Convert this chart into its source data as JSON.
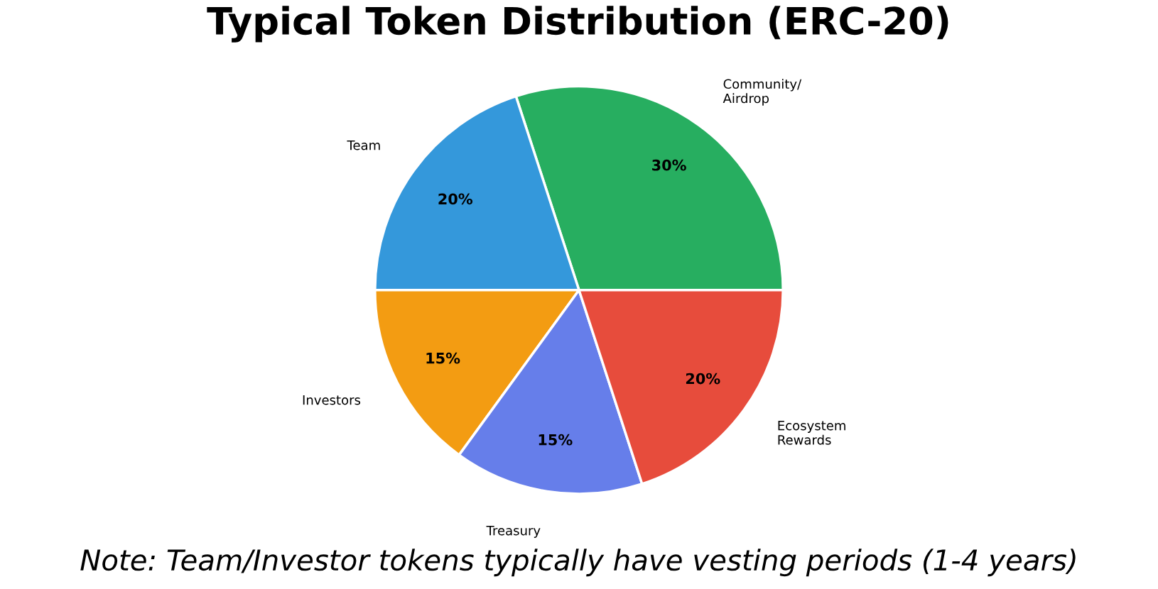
{
  "chart_data": {
    "type": "pie",
    "title": "Typical Token Distribution (ERC-20)",
    "categories": [
      "Community/\nAirdrop",
      "Team",
      "Investors",
      "Treasury",
      "Ecosystem\nRewards"
    ],
    "values": [
      30,
      20,
      15,
      15,
      20
    ],
    "value_labels": [
      "30%",
      "20%",
      "15%",
      "15%",
      "20%"
    ],
    "colors": [
      "#27ae60",
      "#3498db",
      "#f39c12",
      "#667eea",
      "#e74c3c"
    ],
    "annotations": [
      "Note: Team/Investor tokens typically have vesting periods (1-4 years)"
    ],
    "legend": false
  }
}
